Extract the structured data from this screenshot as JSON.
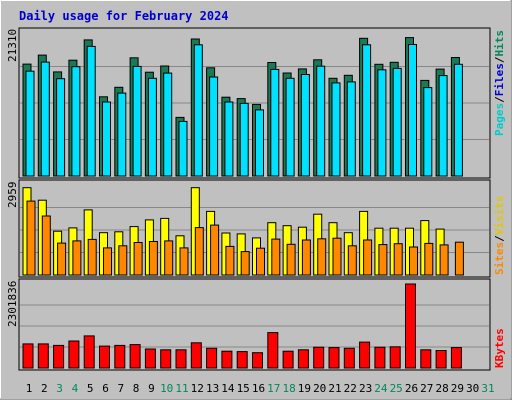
{
  "chart_data": {
    "type": "bar",
    "title": "Daily usage for February 2024",
    "x": [
      "1",
      "2",
      "3",
      "4",
      "5",
      "6",
      "7",
      "8",
      "9",
      "10",
      "11",
      "12",
      "13",
      "14",
      "15",
      "16",
      "17",
      "18",
      "19",
      "20",
      "21",
      "22",
      "23",
      "24",
      "25",
      "26",
      "27",
      "28",
      "29",
      "30",
      "31"
    ],
    "weekend_days": [
      "3",
      "4",
      "10",
      "11",
      "17",
      "18",
      "24",
      "25",
      "31"
    ],
    "colors": {
      "title": "#0000cc",
      "hits": "#00cccc",
      "files": "#0000cc",
      "pages": "#00cccc",
      "visits": "#ffff00",
      "sites": "#ff8800",
      "kbytes": "#ff0000",
      "hits_bar": "#00e0ff",
      "files_bar": "#1a7a55",
      "weekday_label": "#000000",
      "weekend_label": "#00895a"
    },
    "panels": [
      {
        "name": "hits-files-pages",
        "ymax_label": "21310",
        "ymax": 21310,
        "legend": [
          "Pages",
          "/",
          "Files",
          "/",
          "Hits"
        ],
        "series": [
          {
            "name": "Files",
            "values": [
              16340,
              17650,
              15200,
              16900,
              19860,
              11560,
              12940,
              17250,
              15150,
              16050,
              8550,
              20000,
              15800,
              11500,
              11300,
              10450,
              16560,
              15040,
              15630,
              16960,
              14260,
              14700,
              20100,
              16300,
              16600,
              20200,
              13960,
              15600,
              17300,
              null,
              null
            ]
          },
          {
            "name": "Hits",
            "values": [
              15300,
              16620,
              14200,
              15950,
              18910,
              10800,
              12100,
              16000,
              14260,
              15020,
              7970,
              19150,
              14450,
              10800,
              10600,
              9650,
              15560,
              14260,
              14810,
              16020,
              13590,
              13730,
              19150,
              15500,
              15700,
              19200,
              12900,
              14660,
              16300,
              null,
              null
            ]
          }
        ]
      },
      {
        "name": "visits-sites",
        "ymax_label": "2959",
        "ymax": 2959,
        "legend": [
          "Sites",
          "/",
          "Visits"
        ],
        "series": [
          {
            "name": "Visits",
            "values": [
              2870,
              2460,
              1440,
              1550,
              2140,
              1390,
              1420,
              1590,
              1810,
              1860,
              1290,
              2870,
              2090,
              1380,
              1350,
              1220,
              1720,
              1620,
              1570,
              2000,
              1720,
              1390,
              2090,
              1540,
              1540,
              1540,
              1790,
              1510,
              null,
              null,
              null
            ]
          },
          {
            "name": "Sites",
            "values": [
              2430,
              1940,
              1050,
              1120,
              1170,
              890,
              960,
              1070,
              1100,
              1120,
              890,
              1560,
              1640,
              940,
              770,
              880,
              1180,
              1010,
              1150,
              1190,
              1210,
              960,
              1150,
              1000,
              1030,
              920,
              1040,
              990,
              1080,
              null,
              null
            ]
          }
        ]
      },
      {
        "name": "kbytes",
        "ymax_label": "2301836",
        "ymax": 2301836,
        "legend": [
          "KBytes"
        ],
        "series": [
          {
            "name": "KBytes",
            "values": [
              660000,
              660000,
              620000,
              740000,
              880000,
              600000,
              620000,
              640000,
              520000,
              500000,
              500000,
              690000,
              540000,
              460000,
              450000,
              420000,
              970000,
              460000,
              500000,
              570000,
              560000,
              540000,
              710000,
              570000,
              580000,
              2301836,
              500000,
              480000,
              560000,
              null,
              null
            ]
          }
        ]
      }
    ]
  }
}
